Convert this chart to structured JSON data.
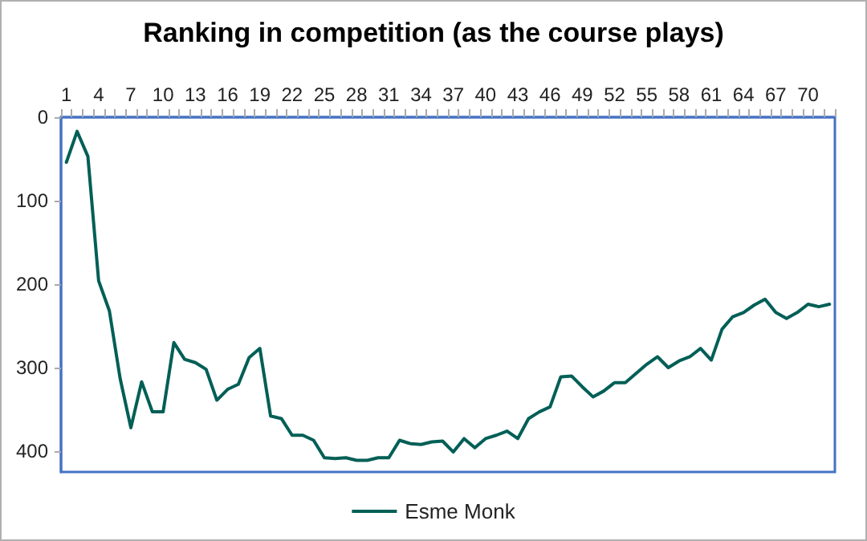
{
  "chart_data": {
    "type": "line",
    "title": "Ranking in competition (as the course plays)",
    "categories": [
      "1",
      null,
      null,
      "4",
      null,
      null,
      "7",
      null,
      null,
      "10",
      null,
      null,
      "13",
      null,
      null,
      "16",
      null,
      null,
      "19",
      null,
      null,
      "22",
      null,
      null,
      "25",
      null,
      null,
      "28",
      null,
      null,
      "31",
      null,
      null,
      "34",
      null,
      null,
      "37",
      null,
      null,
      "40",
      null,
      null,
      "43",
      null,
      null,
      "46",
      null,
      null,
      "49",
      null,
      null,
      "52",
      null,
      null,
      "55",
      null,
      null,
      "58",
      null,
      null,
      "61",
      null,
      null,
      "64",
      null,
      null,
      "67",
      null,
      null,
      "70",
      null,
      null
    ],
    "series": [
      {
        "name": "Esme Monk",
        "color": "#005f56",
        "values": [
          54,
          17,
          47,
          196,
          232,
          313,
          372,
          317,
          353,
          353,
          270,
          290,
          294,
          302,
          339,
          326,
          320,
          288,
          277,
          358,
          361,
          381,
          381,
          387,
          408,
          409,
          408,
          411,
          411,
          408,
          408,
          387,
          391,
          392,
          389,
          388,
          401,
          385,
          396,
          385,
          381,
          376,
          385,
          361,
          353,
          347,
          311,
          310,
          323,
          335,
          328,
          318,
          318,
          307,
          296,
          287,
          300,
          292,
          287,
          277,
          291,
          254,
          239,
          234,
          225,
          218,
          234,
          241,
          234,
          224,
          227,
          224
        ]
      }
    ],
    "ylim": [
      425,
      0
    ],
    "yticks": [
      0,
      100,
      200,
      300,
      400
    ],
    "grid": false,
    "legend": "bottom",
    "marker": "none",
    "line_style": "solid"
  }
}
